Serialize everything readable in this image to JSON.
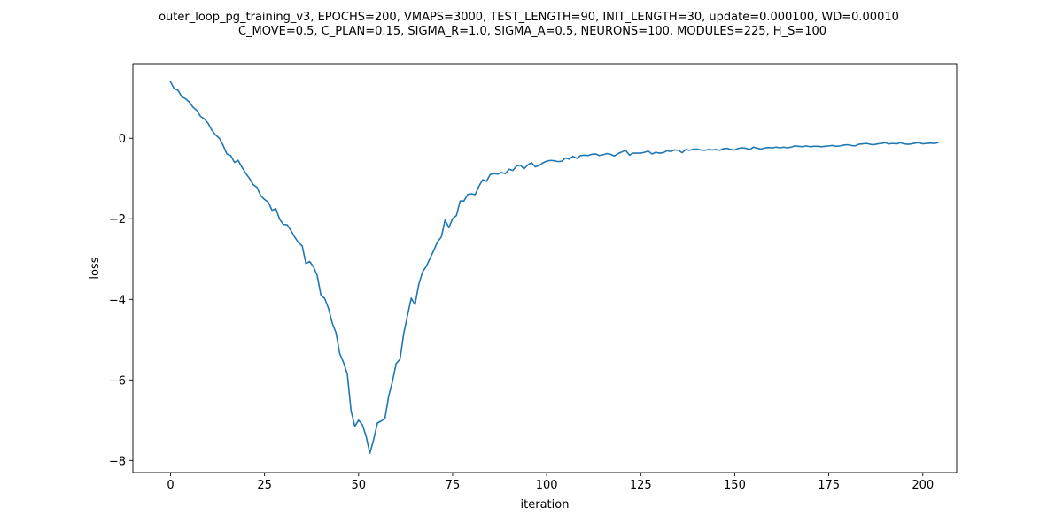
{
  "chart_data": {
    "type": "line",
    "title_lines": [
      "outer_loop_pg_training_v3, EPOCHS=200, VMAPS=3000, TEST_LENGTH=90, INIT_LENGTH=30, update=0.000100, WD=0.00010",
      "C_MOVE=0.5, C_PLAN=0.15, SIGMA_R=1.0, SIGMA_A=0.5, NEURONS=100, MODULES=225, H_S=100"
    ],
    "xlabel": "iteration",
    "ylabel": "loss",
    "xlim": [
      -10,
      209
    ],
    "ylim": [
      -8.3,
      1.85
    ],
    "xticks": [
      0,
      25,
      50,
      75,
      100,
      125,
      150,
      175,
      200
    ],
    "yticks": [
      -8,
      -6,
      -4,
      -2,
      0
    ],
    "ytick_labels": [
      "−8",
      "−6",
      "−4",
      "−2",
      "0"
    ],
    "grid": false,
    "line_color": "#1f77b4",
    "series": [
      {
        "x_start": 0,
        "x_step": 1,
        "values": [
          1.4,
          1.23,
          1.19,
          1.03,
          0.98,
          0.9,
          0.77,
          0.69,
          0.54,
          0.48,
          0.37,
          0.2,
          0.08,
          0.0,
          -0.18,
          -0.39,
          -0.43,
          -0.6,
          -0.55,
          -0.72,
          -0.87,
          -1.0,
          -1.15,
          -1.22,
          -1.43,
          -1.52,
          -1.59,
          -1.79,
          -1.75,
          -2.01,
          -2.14,
          -2.15,
          -2.29,
          -2.45,
          -2.59,
          -2.67,
          -3.11,
          -3.06,
          -3.19,
          -3.41,
          -3.9,
          -3.98,
          -4.22,
          -4.59,
          -4.83,
          -5.35,
          -5.57,
          -5.85,
          -6.77,
          -7.15,
          -7.0,
          -7.11,
          -7.4,
          -7.82,
          -7.48,
          -7.07,
          -7.02,
          -6.96,
          -6.4,
          -6.04,
          -5.59,
          -5.49,
          -4.85,
          -4.4,
          -3.97,
          -4.13,
          -3.63,
          -3.32,
          -3.18,
          -2.98,
          -2.78,
          -2.57,
          -2.45,
          -2.03,
          -2.22,
          -2.0,
          -1.92,
          -1.56,
          -1.56,
          -1.4,
          -1.38,
          -1.4,
          -1.19,
          -1.03,
          -1.07,
          -0.9,
          -0.88,
          -0.89,
          -0.85,
          -0.88,
          -0.77,
          -0.8,
          -0.69,
          -0.67,
          -0.76,
          -0.66,
          -0.61,
          -0.71,
          -0.68,
          -0.61,
          -0.57,
          -0.55,
          -0.56,
          -0.58,
          -0.57,
          -0.49,
          -0.52,
          -0.45,
          -0.5,
          -0.43,
          -0.42,
          -0.43,
          -0.4,
          -0.39,
          -0.43,
          -0.41,
          -0.38,
          -0.4,
          -0.44,
          -0.38,
          -0.34,
          -0.3,
          -0.42,
          -0.37,
          -0.37,
          -0.37,
          -0.35,
          -0.32,
          -0.39,
          -0.35,
          -0.37,
          -0.36,
          -0.31,
          -0.33,
          -0.29,
          -0.3,
          -0.36,
          -0.28,
          -0.3,
          -0.27,
          -0.27,
          -0.29,
          -0.3,
          -0.28,
          -0.29,
          -0.28,
          -0.3,
          -0.26,
          -0.25,
          -0.28,
          -0.29,
          -0.25,
          -0.24,
          -0.25,
          -0.28,
          -0.22,
          -0.25,
          -0.27,
          -0.24,
          -0.23,
          -0.24,
          -0.22,
          -0.24,
          -0.22,
          -0.24,
          -0.22,
          -0.19,
          -0.2,
          -0.21,
          -0.19,
          -0.21,
          -0.2,
          -0.2,
          -0.21,
          -0.2,
          -0.19,
          -0.18,
          -0.2,
          -0.19,
          -0.17,
          -0.16,
          -0.18,
          -0.19,
          -0.15,
          -0.14,
          -0.13,
          -0.15,
          -0.16,
          -0.14,
          -0.13,
          -0.11,
          -0.14,
          -0.13,
          -0.14,
          -0.11,
          -0.14,
          -0.15,
          -0.14,
          -0.12,
          -0.11,
          -0.14,
          -0.13,
          -0.12,
          -0.13,
          -0.11
        ]
      }
    ]
  }
}
